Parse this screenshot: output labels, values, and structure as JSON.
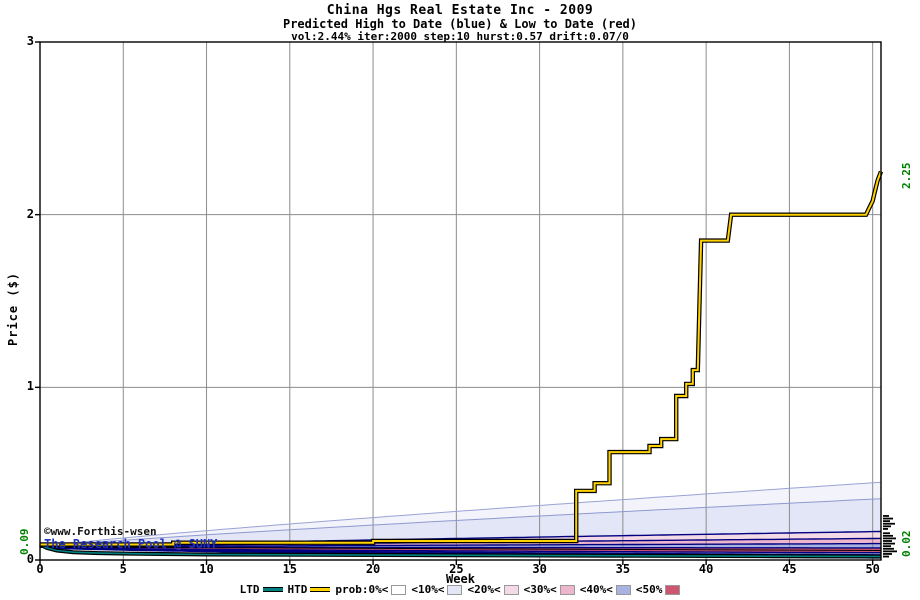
{
  "header": {
    "title": "China Hgs Real Estate Inc - 2009",
    "subtitle": "Predicted High to Date (blue) &  Low to Date (red)",
    "params": "vol:2.44% iter:2000 step:10 hurst:0.57 drift:0.07/0"
  },
  "annotations": {
    "start_price": "0.09",
    "htd_final": "2.25",
    "ltd_final": "0.02",
    "watermark1": "©www.Forthis-wsen",
    "watermark2": "The Research Pool @ SUNY"
  },
  "legend": {
    "items": [
      {
        "label": "LTD",
        "swatch": "line",
        "color": "#008080"
      },
      {
        "label": "HTD",
        "swatch": "line",
        "color": "#ffd200"
      },
      {
        "label": "prob:0%<",
        "swatch": "box",
        "color": "#ffffff"
      },
      {
        "label": "<10%<",
        "swatch": "box",
        "color": "#e3e6f6"
      },
      {
        "label": "<20%<",
        "swatch": "box",
        "color": "#f3dae6"
      },
      {
        "label": "<30%<",
        "swatch": "box",
        "color": "#eeb6cc"
      },
      {
        "label": "<40%<",
        "swatch": "box",
        "color": "#a9b3e2"
      },
      {
        "label": "<50%",
        "swatch": "box",
        "color": "#cf5670"
      }
    ]
  },
  "chart_data": {
    "type": "line",
    "title": "China Hgs Real Estate Inc - 2009",
    "xlabel": "Week",
    "ylabel": "Price ($)",
    "xlim": [
      0,
      50.5
    ],
    "ylim": [
      0,
      3
    ],
    "x_ticks": [
      0,
      5,
      10,
      15,
      20,
      25,
      30,
      35,
      40,
      45,
      50
    ],
    "y_ticks": [
      0,
      1,
      2,
      3
    ],
    "grid": true,
    "legend_position": "bottom",
    "start_price": 0.09,
    "fan_start": 0.075,
    "series": [
      {
        "name": "HTD",
        "color": "#ffd200",
        "outline": "#000000",
        "width": 2,
        "points": [
          [
            0,
            0.09
          ],
          [
            8,
            0.09
          ],
          [
            8,
            0.1
          ],
          [
            20,
            0.1
          ],
          [
            20,
            0.11
          ],
          [
            32.2,
            0.11
          ],
          [
            32.2,
            0.4
          ],
          [
            33.3,
            0.4
          ],
          [
            33.3,
            0.445
          ],
          [
            34.2,
            0.445
          ],
          [
            34.2,
            0.625
          ],
          [
            36.6,
            0.625
          ],
          [
            36.6,
            0.66
          ],
          [
            37.3,
            0.66
          ],
          [
            37.3,
            0.7
          ],
          [
            38.2,
            0.7
          ],
          [
            38.2,
            0.95
          ],
          [
            38.8,
            0.95
          ],
          [
            38.8,
            1.02
          ],
          [
            39.2,
            1.02
          ],
          [
            39.2,
            1.1
          ],
          [
            39.5,
            1.1
          ],
          [
            39.7,
            1.85
          ],
          [
            41.3,
            1.85
          ],
          [
            41.5,
            2.0
          ],
          [
            49.6,
            2.0
          ],
          [
            49.8,
            2.04
          ],
          [
            50.0,
            2.08
          ],
          [
            50.1,
            2.12
          ],
          [
            50.3,
            2.2
          ],
          [
            50.5,
            2.25
          ]
        ]
      },
      {
        "name": "LTD",
        "color": "#008080",
        "outline": "#000000",
        "width": 1.6,
        "points": [
          [
            0,
            0.09
          ],
          [
            0.4,
            0.07
          ],
          [
            1,
            0.055
          ],
          [
            2,
            0.045
          ],
          [
            3.5,
            0.04
          ],
          [
            6,
            0.036
          ],
          [
            10,
            0.032
          ],
          [
            16,
            0.03
          ],
          [
            24,
            0.028
          ],
          [
            34,
            0.025
          ],
          [
            44,
            0.022
          ],
          [
            50.5,
            0.02
          ]
        ]
      },
      {
        "name": "median",
        "color": "#000000",
        "outline": null,
        "width": 1,
        "points": [
          [
            0,
            0.075
          ],
          [
            50.5,
            0.055
          ]
        ]
      }
    ],
    "bands": [
      {
        "name": "prob:0%",
        "fill": "#f2f3fb",
        "edge": "#9aa3d6",
        "upper_end": 0.45,
        "lower_end": 0.003
      },
      {
        "name": "<10%",
        "fill": "#e3e6f6",
        "edge": "#8f99d0",
        "upper_end": 0.355,
        "lower_end": 0.007
      },
      {
        "name": "<20%",
        "fill": "#f3dae6",
        "edge": "#000080",
        "upper_end": 0.165,
        "lower_end": 0.012
      },
      {
        "name": "<30%",
        "fill": "#eeb6cc",
        "edge": "#000080",
        "upper_end": 0.125,
        "lower_end": 0.02
      },
      {
        "name": "<40%",
        "fill": "#a9b3e2",
        "edge": "#000080",
        "upper_end": 0.095,
        "lower_end": 0.03
      },
      {
        "name": "<50%",
        "fill": "#cf5670",
        "edge": "#000080",
        "upper_end": 0.07,
        "lower_end": 0.042
      }
    ],
    "right_marks": [
      {
        "price": 0.255,
        "len": 6
      },
      {
        "price": 0.24,
        "len": 10
      },
      {
        "price": 0.225,
        "len": 7
      },
      {
        "price": 0.21,
        "len": 12
      },
      {
        "price": 0.195,
        "len": 8
      },
      {
        "price": 0.18,
        "len": 5
      },
      {
        "price": 0.155,
        "len": 7
      },
      {
        "price": 0.14,
        "len": 10
      },
      {
        "price": 0.125,
        "len": 13
      },
      {
        "price": 0.11,
        "len": 9
      },
      {
        "price": 0.095,
        "len": 12
      },
      {
        "price": 0.08,
        "len": 8
      },
      {
        "price": 0.065,
        "len": 11
      },
      {
        "price": 0.05,
        "len": 14
      },
      {
        "price": 0.035,
        "len": 9
      },
      {
        "price": 0.02,
        "len": 6
      }
    ]
  }
}
